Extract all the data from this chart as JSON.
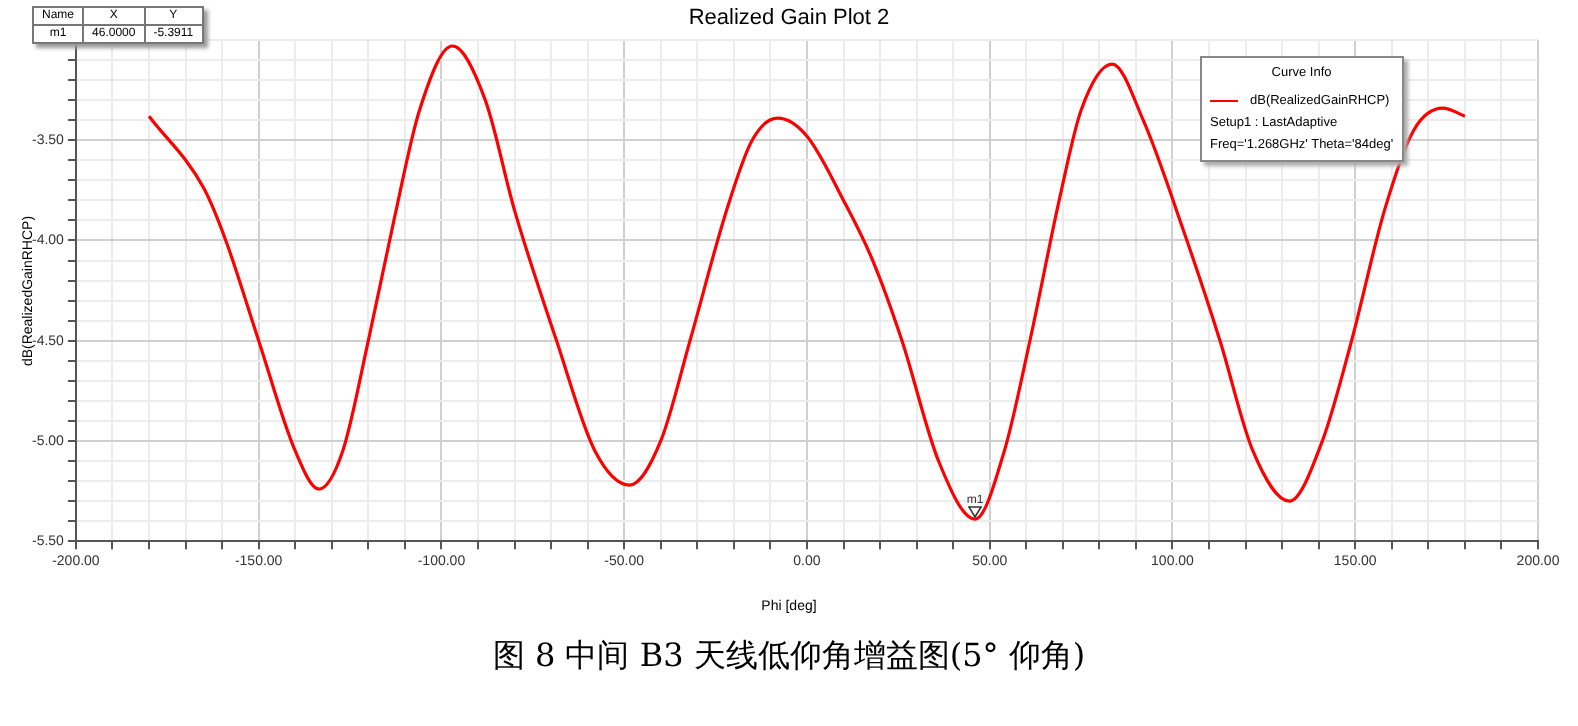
{
  "chart_data": {
    "type": "line",
    "title": "Realized Gain Plot 2",
    "xlabel": "Phi [deg]",
    "ylabel": "dB(RealizedGainRHCP)",
    "legend_title": "Curve Info",
    "legend": "top right",
    "grid": true,
    "marker": "none",
    "line_style": "solid",
    "xlim": [
      -200,
      200
    ],
    "ylim": [
      -5.5,
      -3.0
    ],
    "xticks": [
      {
        "value": -200,
        "label": "-200.00"
      },
      {
        "value": -190,
        "label": null
      },
      {
        "value": -180,
        "label": null
      },
      {
        "value": -170,
        "label": null
      },
      {
        "value": -160,
        "label": null
      },
      {
        "value": -150,
        "label": "-150.00"
      },
      {
        "value": -140,
        "label": null
      },
      {
        "value": -130,
        "label": null
      },
      {
        "value": -120,
        "label": null
      },
      {
        "value": -110,
        "label": null
      },
      {
        "value": -100,
        "label": "-100.00"
      },
      {
        "value": -90,
        "label": null
      },
      {
        "value": -80,
        "label": null
      },
      {
        "value": -70,
        "label": null
      },
      {
        "value": -60,
        "label": null
      },
      {
        "value": -50,
        "label": "-50.00"
      },
      {
        "value": -40,
        "label": null
      },
      {
        "value": -30,
        "label": null
      },
      {
        "value": -20,
        "label": null
      },
      {
        "value": -10,
        "label": null
      },
      {
        "value": 0,
        "label": "0.00"
      },
      {
        "value": 10,
        "label": null
      },
      {
        "value": 20,
        "label": null
      },
      {
        "value": 30,
        "label": null
      },
      {
        "value": 40,
        "label": null
      },
      {
        "value": 50,
        "label": "50.00"
      },
      {
        "value": 60,
        "label": null
      },
      {
        "value": 70,
        "label": null
      },
      {
        "value": 80,
        "label": null
      },
      {
        "value": 90,
        "label": null
      },
      {
        "value": 100,
        "label": "100.00"
      },
      {
        "value": 110,
        "label": null
      },
      {
        "value": 120,
        "label": null
      },
      {
        "value": 130,
        "label": null
      },
      {
        "value": 140,
        "label": null
      },
      {
        "value": 150,
        "label": "150.00"
      },
      {
        "value": 160,
        "label": null
      },
      {
        "value": 170,
        "label": null
      },
      {
        "value": 180,
        "label": null
      },
      {
        "value": 190,
        "label": null
      },
      {
        "value": 200,
        "label": "200.00"
      }
    ],
    "yticks": [
      {
        "value": -5.5,
        "label": "-5.50"
      },
      {
        "value": -5.4,
        "label": null
      },
      {
        "value": -5.3,
        "label": null
      },
      {
        "value": -5.2,
        "label": null
      },
      {
        "value": -5.1,
        "label": null
      },
      {
        "value": -5.0,
        "label": "-5.00"
      },
      {
        "value": -4.9,
        "label": null
      },
      {
        "value": -4.8,
        "label": null
      },
      {
        "value": -4.7,
        "label": null
      },
      {
        "value": -4.6,
        "label": null
      },
      {
        "value": -4.5,
        "label": "-4.50"
      },
      {
        "value": -4.4,
        "label": null
      },
      {
        "value": -4.3,
        "label": null
      },
      {
        "value": -4.2,
        "label": null
      },
      {
        "value": -4.1,
        "label": null
      },
      {
        "value": -4.0,
        "label": "-4.00"
      },
      {
        "value": -3.9,
        "label": null
      },
      {
        "value": -3.8,
        "label": null
      },
      {
        "value": -3.7,
        "label": null
      },
      {
        "value": -3.6,
        "label": null
      },
      {
        "value": -3.5,
        "label": "-3.50"
      },
      {
        "value": -3.4,
        "label": null
      },
      {
        "value": -3.3,
        "label": null
      },
      {
        "value": -3.2,
        "label": null
      },
      {
        "value": -3.1,
        "label": null
      },
      {
        "value": -3.0,
        "label": null
      }
    ],
    "series": [
      {
        "name": "dB(RealizedGainRHCP)",
        "color": "#ff0000",
        "x": [
          -180,
          -165,
          -159,
          -150,
          -140,
          -133.5,
          -127,
          -120,
          -113,
          -106,
          -97,
          -88,
          -80,
          -68.5,
          -58,
          -48.5,
          -40,
          -32,
          -22,
          -15,
          -8,
          0,
          10,
          18,
          26,
          36,
          46,
          54,
          61,
          69,
          75,
          83.5,
          92,
          103,
          113,
          122,
          132,
          141,
          149,
          158,
          166,
          174,
          180
        ],
        "values": [
          -3.38,
          -3.74,
          -4.0,
          -4.5,
          -5.05,
          -5.24,
          -5.05,
          -4.5,
          -3.9,
          -3.35,
          -3.03,
          -3.3,
          -3.85,
          -4.5,
          -5.05,
          -5.22,
          -5.0,
          -4.5,
          -3.85,
          -3.5,
          -3.39,
          -3.48,
          -3.8,
          -4.1,
          -4.5,
          -5.1,
          -5.39,
          -5.05,
          -4.5,
          -3.8,
          -3.35,
          -3.12,
          -3.4,
          -3.95,
          -4.5,
          -5.05,
          -5.3,
          -5.0,
          -4.5,
          -3.85,
          -3.45,
          -3.34,
          -3.38
        ]
      }
    ],
    "annotations": [
      {
        "text": "m1",
        "x": 46,
        "y": -5.39
      },
      "Name",
      "X",
      "Y",
      "m1",
      "46.0000",
      "-5.3911",
      "Setup1 : LastAdaptive",
      "Freq='1.268GHz' Theta='84deg'",
      "图 8 中间 B3 天线低仰角增益图(5° 仰角)"
    ]
  }
}
